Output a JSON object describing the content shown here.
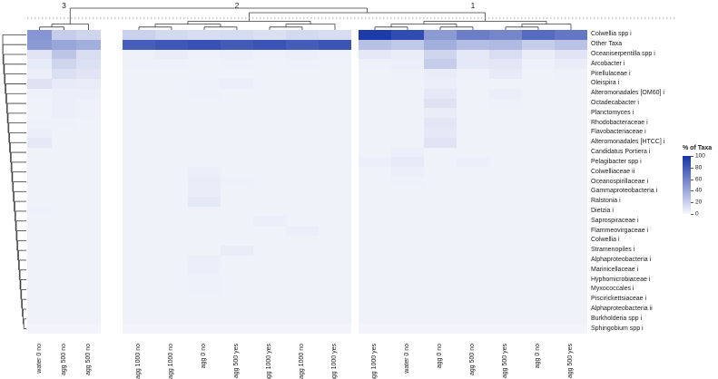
{
  "legend": {
    "title": "% of Taxa",
    "ticks": [
      100,
      80,
      60,
      40,
      20,
      0
    ],
    "color_high": "#1634a6",
    "color_low": "#f7f8fd"
  },
  "chart_data": {
    "type": "heatmap",
    "title": "",
    "legend_title": "% of Taxa",
    "value_range": [
      0,
      100
    ],
    "col_clusters": [
      {
        "label": "3",
        "cols": [
          0,
          1,
          2
        ]
      },
      {
        "label": "2",
        "cols": [
          3,
          4,
          5,
          6,
          7,
          8,
          9
        ]
      },
      {
        "label": "1",
        "cols": [
          10,
          11,
          12,
          13,
          14,
          15,
          16
        ]
      }
    ],
    "columns": [
      "water 0 no",
      "agg 500 no",
      "agg 500 no",
      "agg 1000 no",
      "agg 1000 no",
      "agg 0 no",
      "agg 500 yes",
      "agg 1000 yes",
      "agg 1000 no",
      "agg 1000 yes",
      "agg 1000 yes",
      "water 0 no",
      "agg 0 no",
      "agg 500 no",
      "agg 500 yes",
      "agg 0 no",
      "agg 500 yes"
    ],
    "rows": [
      "Colwellia spp i",
      "Other Taxa",
      "Oceaniserpentilla spp i",
      "Arcobacter i",
      "Pirellulaceae i",
      "Oleispira i",
      "Alteromonadales [OM60] i",
      "Octadecabacter i",
      "Planctomyces i",
      "Rhodobacteraceae i",
      "Flavobacteriaceae i",
      "Alteromonadales [HTCC] i",
      "Candidatus Portiera i",
      "Pelagibacter spp i",
      "Colwelliaceae ii",
      "Oceanospirillaceae i",
      "Gammaproteobacteria i",
      "Ralstonia i",
      "Dietzia i",
      "Saprospiraceae i",
      "Flammeovirgaceae i",
      "Colwellia i",
      "Stramenopiles i",
      "Alphaproteobacteria i",
      "Marinicellaceae i",
      "Hyphomicrobiaceae i",
      "Myxococcales i",
      "Piscirickettsiaceae i",
      "Alphaproteobacteria ii",
      "Burkholderia spp i",
      "Sphingobium spp i"
    ],
    "values": [
      [
        50,
        22,
        18,
        20,
        16,
        14,
        15,
        13,
        16,
        14,
        97,
        88,
        48,
        62,
        58,
        72,
        66
      ],
      [
        48,
        42,
        38,
        78,
        82,
        85,
        80,
        84,
        79,
        83,
        28,
        24,
        38,
        30,
        32,
        22,
        27
      ],
      [
        10,
        26,
        14,
        4,
        6,
        4,
        5,
        4,
        5,
        4,
        8,
        6,
        18,
        8,
        14,
        6,
        10
      ],
      [
        7,
        18,
        12,
        4,
        4,
        3,
        4,
        3,
        4,
        3,
        4,
        5,
        22,
        8,
        9,
        4,
        6
      ],
      [
        5,
        13,
        10,
        3,
        3,
        3,
        3,
        3,
        3,
        3,
        3,
        4,
        6,
        4,
        7,
        3,
        4
      ],
      [
        11,
        7,
        6,
        3,
        3,
        4,
        5,
        3,
        3,
        3,
        3,
        3,
        5,
        3,
        3,
        3,
        3
      ],
      [
        4,
        5,
        5,
        3,
        3,
        4,
        3,
        3,
        3,
        3,
        3,
        3,
        8,
        3,
        5,
        3,
        3
      ],
      [
        3,
        5,
        4,
        3,
        3,
        3,
        3,
        3,
        3,
        3,
        3,
        3,
        11,
        3,
        4,
        3,
        3
      ],
      [
        3,
        5,
        4,
        3,
        3,
        3,
        3,
        3,
        3,
        3,
        3,
        3,
        6,
        3,
        3,
        3,
        3
      ],
      [
        4,
        4,
        3,
        3,
        3,
        3,
        3,
        3,
        3,
        3,
        3,
        3,
        9,
        3,
        3,
        3,
        3
      ],
      [
        5,
        3,
        3,
        3,
        3,
        3,
        3,
        3,
        3,
        3,
        3,
        3,
        8,
        3,
        3,
        3,
        3
      ],
      [
        8,
        3,
        3,
        3,
        3,
        3,
        3,
        3,
        3,
        3,
        3,
        3,
        10,
        3,
        3,
        3,
        3
      ],
      [
        3,
        3,
        3,
        3,
        3,
        3,
        3,
        3,
        3,
        3,
        3,
        5,
        3,
        3,
        3,
        3,
        3
      ],
      [
        3,
        3,
        3,
        3,
        3,
        3,
        3,
        3,
        3,
        3,
        5,
        7,
        3,
        5,
        3,
        3,
        3
      ],
      [
        3,
        3,
        3,
        3,
        3,
        5,
        3,
        3,
        3,
        3,
        3,
        5,
        3,
        3,
        3,
        3,
        3
      ],
      [
        3,
        3,
        3,
        3,
        3,
        6,
        4,
        3,
        3,
        3,
        3,
        4,
        3,
        3,
        3,
        3,
        3
      ],
      [
        3,
        3,
        3,
        3,
        3,
        6,
        3,
        3,
        3,
        3,
        3,
        3,
        3,
        3,
        3,
        3,
        3
      ],
      [
        3,
        3,
        3,
        3,
        3,
        8,
        3,
        3,
        3,
        3,
        3,
        3,
        3,
        3,
        3,
        3,
        3
      ],
      [
        4,
        3,
        3,
        3,
        3,
        3,
        3,
        3,
        3,
        3,
        3,
        3,
        3,
        3,
        3,
        3,
        3
      ],
      [
        3,
        3,
        3,
        3,
        3,
        3,
        3,
        5,
        3,
        3,
        3,
        3,
        3,
        3,
        3,
        3,
        3
      ],
      [
        3,
        3,
        3,
        3,
        3,
        3,
        3,
        3,
        5,
        3,
        3,
        3,
        3,
        3,
        3,
        3,
        3
      ],
      [
        3,
        3,
        3,
        3,
        3,
        3,
        3,
        3,
        3,
        3,
        3,
        3,
        3,
        3,
        3,
        3,
        3
      ],
      [
        3,
        3,
        3,
        3,
        3,
        3,
        6,
        3,
        3,
        3,
        3,
        3,
        3,
        3,
        3,
        3,
        3
      ],
      [
        3,
        3,
        3,
        3,
        3,
        5,
        3,
        3,
        3,
        3,
        3,
        3,
        3,
        3,
        3,
        3,
        3
      ],
      [
        3,
        3,
        3,
        3,
        3,
        5,
        3,
        3,
        3,
        3,
        3,
        3,
        3,
        3,
        3,
        3,
        3
      ],
      [
        3,
        3,
        3,
        3,
        3,
        4,
        3,
        3,
        3,
        3,
        3,
        3,
        3,
        3,
        3,
        3,
        3
      ],
      [
        3,
        3,
        3,
        3,
        3,
        4,
        3,
        3,
        3,
        3,
        3,
        3,
        3,
        3,
        3,
        3,
        3
      ],
      [
        3,
        3,
        3,
        3,
        3,
        3,
        3,
        3,
        3,
        3,
        3,
        3,
        3,
        3,
        3,
        3,
        3
      ],
      [
        3,
        3,
        3,
        3,
        3,
        3,
        3,
        3,
        3,
        3,
        3,
        3,
        3,
        3,
        3,
        3,
        3
      ],
      [
        3,
        3,
        3,
        3,
        3,
        3,
        3,
        3,
        3,
        3,
        3,
        3,
        3,
        3,
        3,
        3,
        3
      ],
      [
        2,
        2,
        2,
        2,
        2,
        2,
        2,
        2,
        2,
        2,
        2,
        2,
        2,
        2,
        2,
        2,
        2
      ]
    ]
  }
}
